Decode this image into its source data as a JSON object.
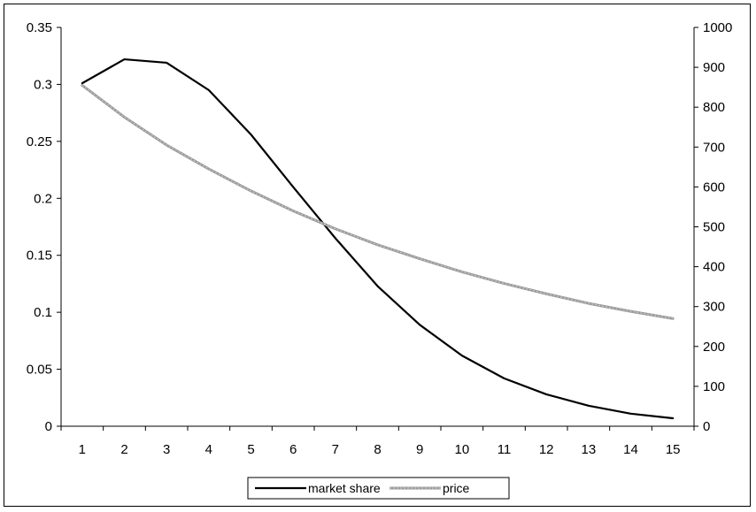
{
  "chart_data": {
    "type": "line",
    "x": [
      1,
      2,
      3,
      4,
      5,
      6,
      7,
      8,
      9,
      10,
      11,
      12,
      13,
      14,
      15
    ],
    "series": [
      {
        "name": "market share",
        "axis": "left",
        "color": "#000000",
        "values": [
          0.301,
          0.322,
          0.319,
          0.295,
          0.256,
          0.21,
          0.165,
          0.123,
          0.089,
          0.062,
          0.042,
          0.028,
          0.018,
          0.011,
          0.007
        ]
      },
      {
        "name": "price",
        "axis": "right",
        "color": "#9a9a9a",
        "values": [
          855,
          775,
          705,
          645,
          590,
          540,
          495,
          455,
          420,
          387,
          358,
          332,
          308,
          288,
          270
        ]
      }
    ],
    "yleft": {
      "range": [
        0,
        0.35
      ],
      "ticks": [
        "0",
        "0.05",
        "0.1",
        "0.15",
        "0.2",
        "0.25",
        "0.3",
        "0.35"
      ]
    },
    "yright": {
      "range": [
        0,
        1000
      ],
      "ticks": [
        "0",
        "100",
        "200",
        "300",
        "400",
        "500",
        "600",
        "700",
        "800",
        "900",
        "1000"
      ]
    },
    "xticks": [
      "1",
      "2",
      "3",
      "4",
      "5",
      "6",
      "7",
      "8",
      "9",
      "10",
      "11",
      "12",
      "13",
      "14",
      "15"
    ],
    "legend": "bottom",
    "grid": false
  }
}
